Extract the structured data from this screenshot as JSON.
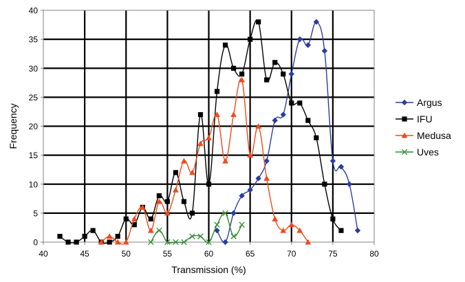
{
  "chart_data": {
    "type": "line",
    "title": "",
    "xlabel": "Transmission (%)",
    "ylabel": "Frequency",
    "xlim": [
      40,
      80
    ],
    "ylim": [
      0,
      40
    ],
    "x_ticks": [
      40,
      45,
      50,
      55,
      60,
      65,
      70,
      75,
      80
    ],
    "y_ticks": [
      0,
      5,
      10,
      15,
      20,
      25,
      30,
      35,
      40
    ],
    "x_tick_labels": [
      "40",
      "45",
      "50",
      "55",
      "60",
      "65",
      "70",
      "75",
      "80"
    ],
    "y_tick_labels": [
      "0",
      "5",
      "10",
      "15",
      "20",
      "25",
      "30",
      "35",
      "40"
    ],
    "grid": true,
    "legend_position": "right",
    "series": [
      {
        "name": "Argus",
        "color": "#2a3d9e",
        "marker": "diamond",
        "x": [
          61,
          62,
          63,
          64,
          65,
          66,
          67,
          68,
          69,
          70,
          71,
          72,
          73,
          74,
          75,
          76,
          77,
          78
        ],
        "y": [
          2,
          0,
          5,
          8,
          9,
          11,
          14,
          21,
          22,
          29,
          35,
          34,
          38,
          33,
          14,
          13,
          10,
          2
        ]
      },
      {
        "name": "IFU",
        "color": "#000000",
        "marker": "square",
        "x": [
          42,
          43,
          44,
          45,
          46,
          47,
          48,
          49,
          50,
          51,
          52,
          53,
          54,
          55,
          56,
          57,
          58,
          59,
          60,
          61,
          62,
          63,
          64,
          65,
          66,
          67,
          68,
          69,
          70,
          71,
          72,
          73,
          74,
          75,
          76
        ],
        "y": [
          1,
          0,
          0,
          1,
          2,
          0,
          0,
          1,
          4,
          3,
          6,
          4,
          8,
          7,
          12,
          7,
          5,
          22,
          10,
          26,
          34,
          30,
          29,
          35,
          38,
          28,
          31,
          29,
          24,
          24,
          21,
          18,
          10,
          4,
          2
        ]
      },
      {
        "name": "Medusa",
        "color": "#f04a1c",
        "marker": "triangle",
        "x": [
          47,
          48,
          49,
          50,
          51,
          52,
          53,
          54,
          55,
          56,
          57,
          58,
          59,
          60,
          61,
          62,
          63,
          64,
          65,
          66,
          67,
          68,
          69,
          70,
          71,
          72
        ],
        "y": [
          0,
          1,
          0,
          0,
          4,
          6,
          2,
          7,
          5,
          9,
          14,
          12,
          17,
          18,
          22,
          14,
          22,
          28,
          15,
          20,
          11,
          4,
          2,
          3,
          2,
          0
        ]
      },
      {
        "name": "Uves",
        "color": "#2e8b2e",
        "marker": "x",
        "x": [
          53,
          54,
          55,
          56,
          57,
          58,
          59,
          60,
          61,
          62,
          63,
          64
        ],
        "y": [
          0,
          2,
          0,
          0,
          0,
          1,
          1,
          0,
          3,
          5,
          1,
          3
        ]
      }
    ]
  }
}
